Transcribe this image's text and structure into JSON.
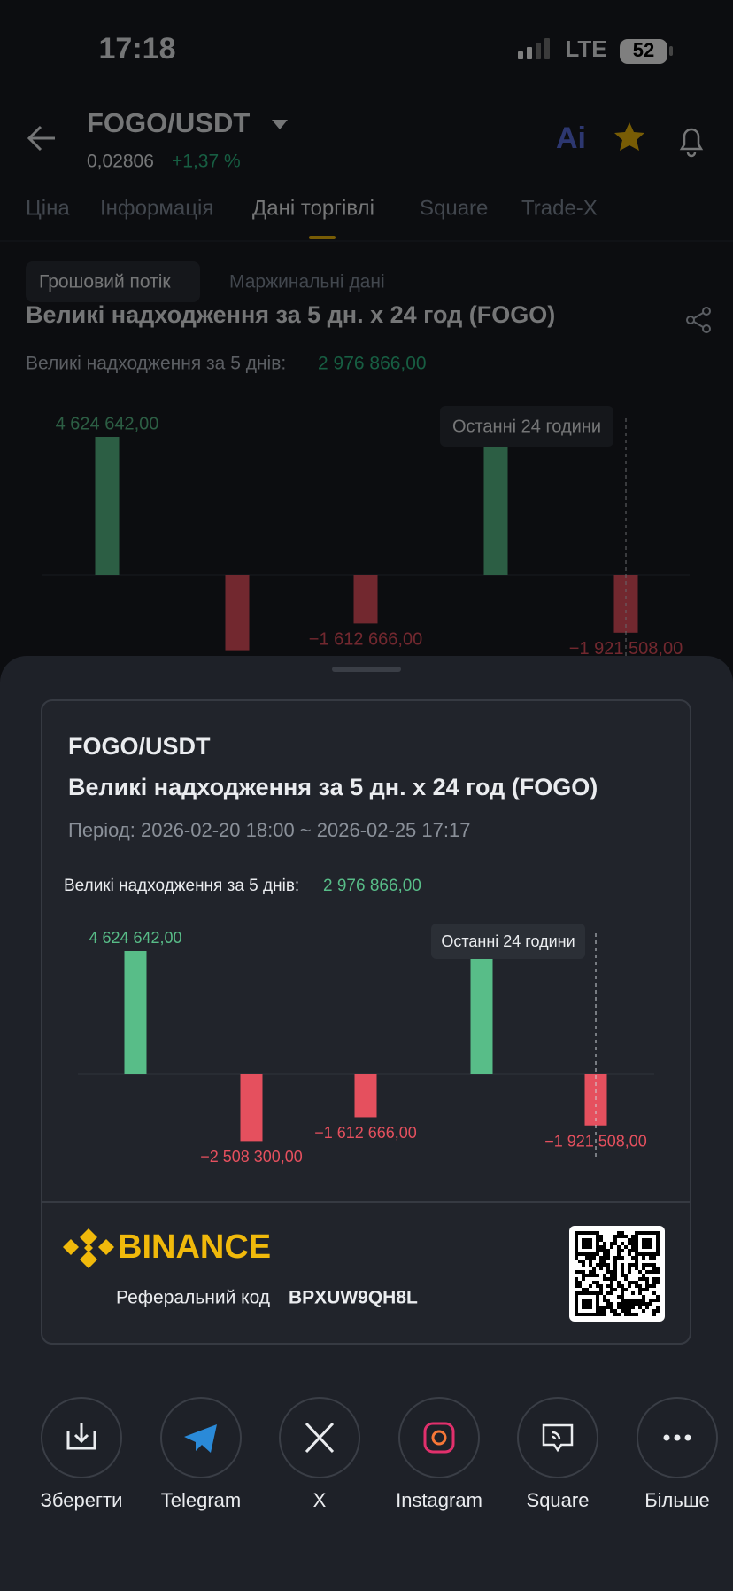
{
  "status": {
    "time": "17:18",
    "network": "LTE",
    "battery": "52"
  },
  "header": {
    "pair": "FOGO/USDT",
    "price": "0,02806",
    "change": "+1,37 %"
  },
  "tabs": [
    "Ціна",
    "Інформація",
    "Дані торгівлі",
    "Square",
    "Trade-X"
  ],
  "subtabs": [
    "Грошовий потік",
    "Маржинальні дані"
  ],
  "chart_data": {
    "type": "bar",
    "title": "Великі надходження за 5 дн. x 24 год (FOGO)",
    "summary_label": "Великі надходження за 5 днів:",
    "summary_value": "2 976 866,00",
    "annotation": "Останні 24 години",
    "values": [
      4624642,
      -2508300,
      -1612666,
      4394698,
      -1921508
    ],
    "value_labels": [
      "4 624 642,00",
      "−2 508 300,00",
      "−1 612 666,00",
      null,
      "−1 921 508,00"
    ],
    "positive_color": "#58bd88",
    "negative_color": "#e5505e"
  },
  "card": {
    "period": "Період: 2026-02-20 18:00 ~ 2026-02-25 17:17",
    "brand": "BINANCE",
    "referral_label": "Реферальний код",
    "referral_code": "BPXUW9QH8L"
  },
  "share": [
    "Зберегти",
    "Telegram",
    "X",
    "Instagram",
    "Square",
    "Більше"
  ]
}
